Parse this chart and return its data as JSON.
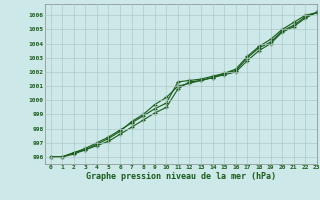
{
  "xlabel": "Graphe pression niveau de la mer (hPa)",
  "xlim": [
    -0.5,
    23
  ],
  "ylim": [
    995.5,
    1006.8
  ],
  "yticks": [
    996,
    997,
    998,
    999,
    1000,
    1001,
    1002,
    1003,
    1004,
    1005,
    1006
  ],
  "xticks": [
    0,
    1,
    2,
    3,
    4,
    5,
    6,
    7,
    8,
    9,
    10,
    11,
    12,
    13,
    14,
    15,
    16,
    17,
    18,
    19,
    20,
    21,
    22,
    23
  ],
  "bg_color": "#cce8e8",
  "grid_color": "#b0c8c8",
  "line_color": "#1a5c1a",
  "marker_color": "#1a5c1a",
  "series1": [
    996.0,
    996.0,
    996.3,
    996.6,
    997.0,
    997.4,
    997.9,
    998.4,
    998.9,
    999.4,
    999.8,
    1001.3,
    1001.4,
    1001.5,
    1001.7,
    1001.9,
    1002.2,
    1003.1,
    1003.8,
    1004.3,
    1005.0,
    1005.5,
    1006.0,
    1006.2
  ],
  "series2": [
    996.0,
    996.0,
    996.2,
    996.5,
    996.8,
    997.1,
    997.6,
    998.1,
    998.6,
    999.1,
    999.5,
    1000.8,
    1001.3,
    1001.4,
    1001.6,
    1001.8,
    1002.0,
    1002.8,
    1003.5,
    1004.0,
    1004.8,
    1005.2,
    1005.8,
    1006.2
  ],
  "series3": [
    996.0,
    996.0,
    996.3,
    996.5,
    996.9,
    997.3,
    997.8,
    998.5,
    999.0,
    999.7,
    1000.2,
    1001.0,
    1001.2,
    1001.4,
    1001.6,
    1001.9,
    1002.1,
    1003.0,
    1003.7,
    1004.1,
    1004.9,
    1005.3,
    1005.9,
    1006.2
  ]
}
